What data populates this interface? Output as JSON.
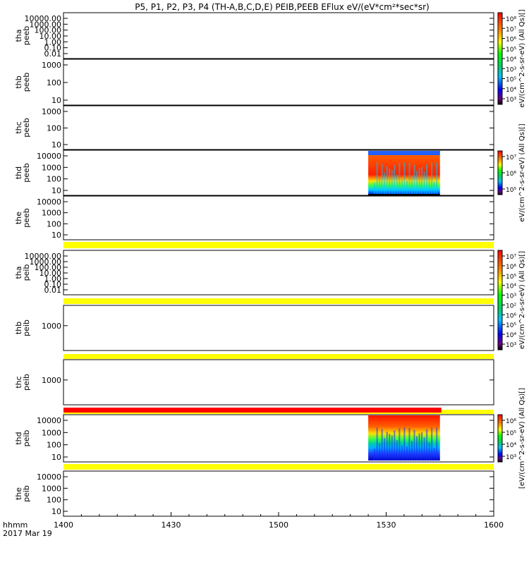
{
  "title": "P5, P1, P2, P3, P4 (TH-A,B,C,D,E) PEIB,PEEB EFlux eV/(eV*cm²*sec*sr)",
  "chart_data": {
    "type": "heatmap",
    "xaxis": {
      "tick_labels": [
        "1400",
        "1430",
        "1500",
        "1530",
        "1600"
      ],
      "corner_labels": [
        "hhmm",
        "2017 Mar 19"
      ]
    },
    "panels": [
      {
        "probe": "tha",
        "product": "peeb",
        "yscale": "log",
        "yticks": [
          "10000.00",
          "1000.00",
          "100.00",
          "10.00",
          "1.00",
          "0.10",
          "0.01"
        ],
        "has_data": false
      },
      {
        "probe": "thb",
        "product": "peeb",
        "yscale": "log",
        "yticks": [
          "1000",
          "100",
          "10"
        ],
        "has_data": false
      },
      {
        "probe": "thc",
        "product": "peeb",
        "yscale": "log",
        "yticks": [
          "1000",
          "100",
          "10"
        ],
        "has_data": false
      },
      {
        "probe": "thd",
        "product": "peeb",
        "yscale": "log",
        "yticks": [
          "10000",
          "1000",
          "100",
          "10"
        ],
        "has_data": true,
        "data_start": "1525",
        "data_end": "1545"
      },
      {
        "probe": "the",
        "product": "peeb",
        "yscale": "log",
        "yticks": [
          "10000",
          "1000",
          "100",
          "10"
        ],
        "has_data": false
      },
      {
        "probe": "tha",
        "product": "peib",
        "yscale": "log",
        "yticks": [
          "10000.00",
          "1000.00",
          "100.00",
          "10.00",
          "1.00",
          "0.10",
          "0.01"
        ],
        "has_data": false
      },
      {
        "probe": "thb",
        "product": "peib",
        "yscale": "log",
        "yticks": [
          "1000"
        ],
        "has_data": false
      },
      {
        "probe": "thc",
        "product": "peib",
        "yscale": "log",
        "yticks": [
          "1000"
        ],
        "has_data": false
      },
      {
        "probe": "thd",
        "product": "peib",
        "yscale": "log",
        "yticks": [
          "10000",
          "1000",
          "100",
          "10"
        ],
        "has_data": true,
        "data_start": "1525",
        "data_end": "1545"
      },
      {
        "probe": "the",
        "product": "peib",
        "yscale": "log",
        "yticks": [
          "10000",
          "1000",
          "100",
          "10"
        ],
        "has_data": false
      }
    ],
    "colorbars": [
      {
        "labels": [
          "10⁸",
          "10⁷",
          "10⁶",
          "10⁵",
          "10⁴",
          "10³",
          "10⁵",
          "10⁴",
          "10³"
        ],
        "axis_label": "eV/(cm^2-s-sr-eV) (All Qs)[]"
      },
      {
        "labels": [
          "10⁷",
          "10⁶",
          "10⁵"
        ],
        "axis_label": "eV/(cm^2-s-sr-eV) (All Qs)[]"
      },
      {
        "labels": [
          "10⁷",
          "10⁶",
          "10⁵",
          "10⁴",
          "10³",
          "10²",
          "10⁶",
          "10⁵",
          "10⁴",
          "10³"
        ],
        "axis_label": "eV/(cm^2-s-sr-eV) (All Qs)[]"
      },
      {
        "labels": [
          "10⁶",
          "10⁵",
          "10⁴",
          "10³"
        ],
        "axis_label": "[eV/(cm^2-s-sr-eV) (All Qs)[]"
      }
    ],
    "status_bars": {
      "colors": {
        "yellow": "#ffff00",
        "red": "#ff0000"
      }
    }
  }
}
